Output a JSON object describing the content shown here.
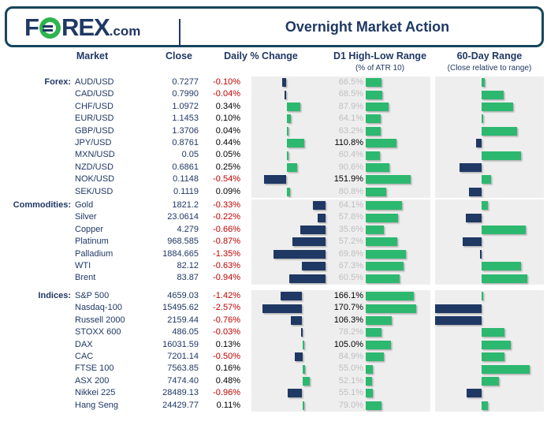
{
  "header": {
    "logo": {
      "f": "F",
      "o": "O",
      "rex": "REX",
      "dotcom": ".com"
    },
    "title": "Overnight Market Action"
  },
  "columns": {
    "market": "Market",
    "close": "Close",
    "daily": "Daily % Change",
    "d1": "D1 High-Low Range",
    "d1_sub": "(% of ATR 10)",
    "range60": "60-Day Range",
    "range60_sub": "(Close relative to range)"
  },
  "colors": {
    "navy": "#1f3864",
    "green": "#2db870",
    "logo_green": "#2eb44e",
    "red": "#c00000",
    "grey_text": "#bfbfbf",
    "panel_grey": "#eeeeee",
    "frame": "#16455c"
  },
  "chart_data": {
    "type": "table",
    "title": "Overnight Market Action",
    "value_columns": [
      "Close",
      "Daily % Change",
      "D1 High-Low Range (% of ATR 10)",
      "60-Day Range (Close relative to range)"
    ],
    "notes": "range_pos is the close position within the 60-day range read off the bar chart, scaled -1 (low end) to +1 (high end); negative bars drawn navy to the left of the axis, positive green to the right",
    "sections": [
      {
        "label": "Forex:",
        "rows": [
          {
            "market": "AUD/USD",
            "close": "0.7277",
            "change": "-0.10%",
            "change_val": -0.1,
            "atr": "66.5%",
            "atr_val": 66.5,
            "range_pos": 0.07
          },
          {
            "market": "CAD/USD",
            "close": "0.7990",
            "change": "-0.04%",
            "change_val": -0.04,
            "atr": "68.5%",
            "atr_val": 68.5,
            "range_pos": 0.46
          },
          {
            "market": "CHF/USD",
            "close": "1.0972",
            "change": "0.34%",
            "change_val": 0.34,
            "atr": "87.9%",
            "atr_val": 87.9,
            "range_pos": 0.66
          },
          {
            "market": "EUR/USD",
            "close": "1.1453",
            "change": "0.10%",
            "change_val": 0.1,
            "atr": "64.1%",
            "atr_val": 64.1,
            "range_pos": 0.03
          },
          {
            "market": "GBP/USD",
            "close": "1.3706",
            "change": "0.04%",
            "change_val": 0.04,
            "atr": "63.2%",
            "atr_val": 63.2,
            "range_pos": 0.74
          },
          {
            "market": "JPY/USD",
            "close": "0.8761",
            "change": "0.44%",
            "change_val": 0.44,
            "atr": "110.8%",
            "atr_val": 110.8,
            "range_pos": -0.11
          },
          {
            "market": "MXN/USD",
            "close": "0.05",
            "change": "0.05%",
            "change_val": 0.05,
            "atr": "60.4%",
            "atr_val": 60.4,
            "range_pos": 0.82
          },
          {
            "market": "NZD/USD",
            "close": "0.6861",
            "change": "0.25%",
            "change_val": 0.25,
            "atr": "90.6%",
            "atr_val": 90.6,
            "range_pos": -0.46
          },
          {
            "market": "NOK/USD",
            "close": "0.1148",
            "change": "-0.54%",
            "change_val": -0.54,
            "atr": "151.9%",
            "atr_val": 151.9,
            "range_pos": 0.2
          },
          {
            "market": "SEK/USD",
            "close": "0.1119",
            "change": "0.09%",
            "change_val": 0.09,
            "atr": "80.8%",
            "atr_val": 80.8,
            "range_pos": -0.26
          }
        ]
      },
      {
        "label": "Commodities:",
        "rows": [
          {
            "market": "Gold",
            "close": "1821.2",
            "change": "-0.33%",
            "change_val": -0.33,
            "atr": "64.1%",
            "atr_val": 64.1,
            "range_pos": 0.13
          },
          {
            "market": "Silver",
            "close": "23.0614",
            "change": "-0.22%",
            "change_val": -0.22,
            "atr": "57.8%",
            "atr_val": 57.8,
            "range_pos": -0.33
          },
          {
            "market": "Copper",
            "close": "4.279",
            "change": "-0.66%",
            "change_val": -0.66,
            "atr": "35.6%",
            "atr_val": 35.6,
            "range_pos": 0.92
          },
          {
            "market": "Platinum",
            "close": "968.585",
            "change": "-0.87%",
            "change_val": -0.87,
            "atr": "57.2%",
            "atr_val": 57.2,
            "range_pos": -0.39
          },
          {
            "market": "Palladium",
            "close": "1884.665",
            "change": "-1.35%",
            "change_val": -1.35,
            "atr": "69.8%",
            "atr_val": 69.8,
            "range_pos": -0.03
          },
          {
            "market": "WTI",
            "close": "82.12",
            "change": "-0.63%",
            "change_val": -0.63,
            "atr": "67.3%",
            "atr_val": 67.3,
            "range_pos": 0.82
          },
          {
            "market": "Brent",
            "close": "83.87",
            "change": "-0.94%",
            "change_val": -0.94,
            "atr": "60.5%",
            "atr_val": 60.5,
            "range_pos": 0.95
          }
        ]
      },
      {
        "label": "Indices:",
        "rows": [
          {
            "market": "S&P 500",
            "close": "4659.03",
            "change": "-1.42%",
            "change_val": -1.42,
            "atr": "166.1%",
            "atr_val": 166.1,
            "range_pos": 0.02
          },
          {
            "market": "Nasdaq-100",
            "close": "15495.62",
            "change": "-2.57%",
            "change_val": -2.57,
            "atr": "170.7%",
            "atr_val": 170.7,
            "range_pos": -0.97
          },
          {
            "market": "Russell 2000",
            "close": "2159.44",
            "change": "-0.76%",
            "change_val": -0.76,
            "atr": "106.3%",
            "atr_val": 106.3,
            "range_pos": -0.97
          },
          {
            "market": "STOXX 600",
            "close": "486.05",
            "change": "-0.03%",
            "change_val": -0.03,
            "atr": "78.2%",
            "atr_val": 78.2,
            "range_pos": 0.48
          },
          {
            "market": "DAX",
            "close": "16031.59",
            "change": "0.13%",
            "change_val": 0.13,
            "atr": "105.0%",
            "atr_val": 105.0,
            "range_pos": 0.61
          },
          {
            "market": "CAC",
            "close": "7201.14",
            "change": "-0.50%",
            "change_val": -0.5,
            "atr": "84.9%",
            "atr_val": 84.9,
            "range_pos": 0.48
          },
          {
            "market": "FTSE 100",
            "close": "7563.85",
            "change": "0.16%",
            "change_val": 0.16,
            "atr": "55.0%",
            "atr_val": 55.0,
            "range_pos": 1.0
          },
          {
            "market": "ASX 200",
            "close": "7474.40",
            "change": "0.48%",
            "change_val": 0.48,
            "atr": "52.1%",
            "atr_val": 52.1,
            "range_pos": 0.36
          },
          {
            "market": "Nikkei 225",
            "close": "28489.13",
            "change": "-0.96%",
            "change_val": -0.96,
            "atr": "55.1%",
            "atr_val": 55.1,
            "range_pos": -0.31
          },
          {
            "market": "Hang Seng",
            "close": "24429.77",
            "change": "0.11%",
            "change_val": 0.11,
            "atr": "79.0%",
            "atr_val": 79.0,
            "range_pos": 0.13
          }
        ]
      }
    ]
  }
}
